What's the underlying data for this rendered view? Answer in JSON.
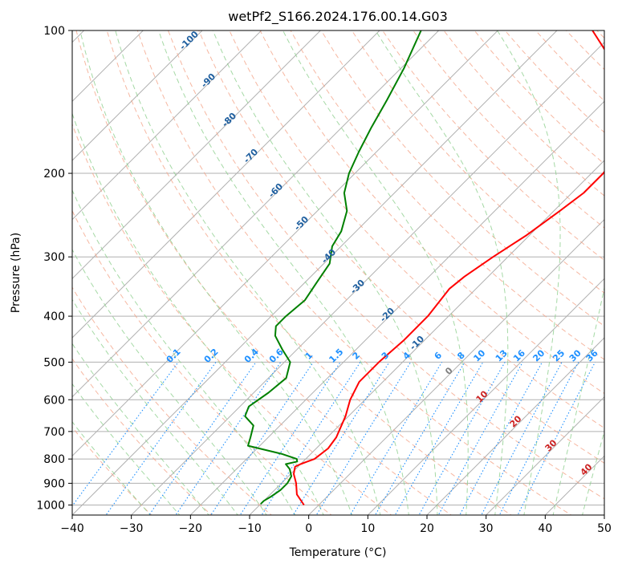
{
  "chart_data": {
    "type": "line",
    "subtype": "skew-t log-p",
    "title": "wetPf2_S166.2024.176.00.14.G03",
    "xlabel": "Temperature (°C)",
    "ylabel": "Pressure (hPa)",
    "xlim": [
      -40,
      50
    ],
    "ylim": [
      1050,
      100
    ],
    "y_scale": "log",
    "grid": true,
    "x_ticks": [
      "−40",
      "−30",
      "−20",
      "−10",
      "0",
      "10",
      "20",
      "30",
      "40",
      "50"
    ],
    "x_tick_values": [
      -40,
      -30,
      -20,
      -10,
      0,
      10,
      20,
      30,
      40,
      50
    ],
    "y_ticks": [
      "100",
      "200",
      "300",
      "400",
      "500",
      "600",
      "700",
      "800",
      "900",
      "1000"
    ],
    "y_tick_values": [
      100,
      200,
      300,
      400,
      500,
      600,
      700,
      800,
      900,
      1000
    ],
    "series": [
      {
        "role": "temperature",
        "color": "#ff0000",
        "points": [
          {
            "p": 1000,
            "t": -2.5
          },
          {
            "p": 950,
            "t": -5.5
          },
          {
            "p": 900,
            "t": -7.5
          },
          {
            "p": 860,
            "t": -9.5
          },
          {
            "p": 830,
            "t": -10.5
          },
          {
            "p": 820,
            "t": -10.0
          },
          {
            "p": 800,
            "t": -8.5
          },
          {
            "p": 760,
            "t": -8.0
          },
          {
            "p": 720,
            "t": -8.5
          },
          {
            "p": 650,
            "t": -10.5
          },
          {
            "p": 600,
            "t": -12.5
          },
          {
            "p": 550,
            "t": -14.0
          },
          {
            "p": 500,
            "t": -14.0
          },
          {
            "p": 450,
            "t": -13.5
          },
          {
            "p": 400,
            "t": -13.5
          },
          {
            "p": 350,
            "t": -14.5
          },
          {
            "p": 330,
            "t": -14.0
          },
          {
            "p": 300,
            "t": -12.5
          },
          {
            "p": 270,
            "t": -10.5
          },
          {
            "p": 240,
            "t": -9.0
          },
          {
            "p": 220,
            "t": -8.0
          },
          {
            "p": 200,
            "t": -8.0
          },
          {
            "p": 180,
            "t": -9.0
          },
          {
            "p": 160,
            "t": -11.0
          },
          {
            "p": 145,
            "t": -15.0
          },
          {
            "p": 130,
            "t": -20.0
          },
          {
            "p": 115,
            "t": -26.0
          },
          {
            "p": 100,
            "t": -34.0
          }
        ]
      },
      {
        "role": "dewpoint",
        "color": "#008000",
        "points": [
          {
            "p": 995,
            "t": -10.0
          },
          {
            "p": 980,
            "t": -10.0
          },
          {
            "p": 960,
            "t": -9.5
          },
          {
            "p": 930,
            "t": -9.0
          },
          {
            "p": 900,
            "t": -9.0
          },
          {
            "p": 870,
            "t": -9.5
          },
          {
            "p": 840,
            "t": -11.0
          },
          {
            "p": 820,
            "t": -12.5
          },
          {
            "p": 810,
            "t": -11.0
          },
          {
            "p": 800,
            "t": -11.5
          },
          {
            "p": 780,
            "t": -15.0
          },
          {
            "p": 750,
            "t": -22.0
          },
          {
            "p": 720,
            "t": -23.0
          },
          {
            "p": 680,
            "t": -24.5
          },
          {
            "p": 650,
            "t": -27.5
          },
          {
            "p": 620,
            "t": -28.5
          },
          {
            "p": 580,
            "t": -27.5
          },
          {
            "p": 540,
            "t": -27.0
          },
          {
            "p": 500,
            "t": -29.0
          },
          {
            "p": 470,
            "t": -32.5
          },
          {
            "p": 440,
            "t": -36.0
          },
          {
            "p": 420,
            "t": -37.5
          },
          {
            "p": 400,
            "t": -37.5
          },
          {
            "p": 370,
            "t": -37.0
          },
          {
            "p": 340,
            "t": -38.0
          },
          {
            "p": 310,
            "t": -39.0
          },
          {
            "p": 285,
            "t": -41.5
          },
          {
            "p": 265,
            "t": -42.5
          },
          {
            "p": 240,
            "t": -45.0
          },
          {
            "p": 220,
            "t": -48.5
          },
          {
            "p": 200,
            "t": -51.0
          },
          {
            "p": 180,
            "t": -53.0
          },
          {
            "p": 160,
            "t": -55.0
          },
          {
            "p": 140,
            "t": -57.0
          },
          {
            "p": 120,
            "t": -59.5
          },
          {
            "p": 100,
            "t": -63.0
          }
        ]
      }
    ],
    "annotations": {
      "dry_adiabats_label_color": "#1f5f9f",
      "dry_adiabats": [
        "-100",
        "-90",
        "-80",
        "-70",
        "-60",
        "-50",
        "-40",
        "-30",
        "-20",
        "-10"
      ],
      "mixing_ratio_label_color": "#1e90ff",
      "mixing_ratios": [
        "0.1",
        "0.2",
        "0.4",
        "0.6",
        "1",
        "1.5",
        "2",
        "3",
        "4",
        "6",
        "8",
        "10",
        "13",
        "16",
        "20",
        "25",
        "30",
        "36"
      ],
      "moist_adiabat_label_color": "#cc2222",
      "moist_adiabats": [
        "0",
        "10",
        "20",
        "30",
        "40"
      ]
    },
    "colors": {
      "isotherm_grid": "#b0b0b0",
      "isobar_grid": "#b0b0b0",
      "dry_adiabat": "#f4a58a",
      "moist_adiabat": "#8fcf8f",
      "mixing_ratio": "#1e90ff",
      "temperature": "#ff0000",
      "dewpoint": "#008000"
    }
  }
}
